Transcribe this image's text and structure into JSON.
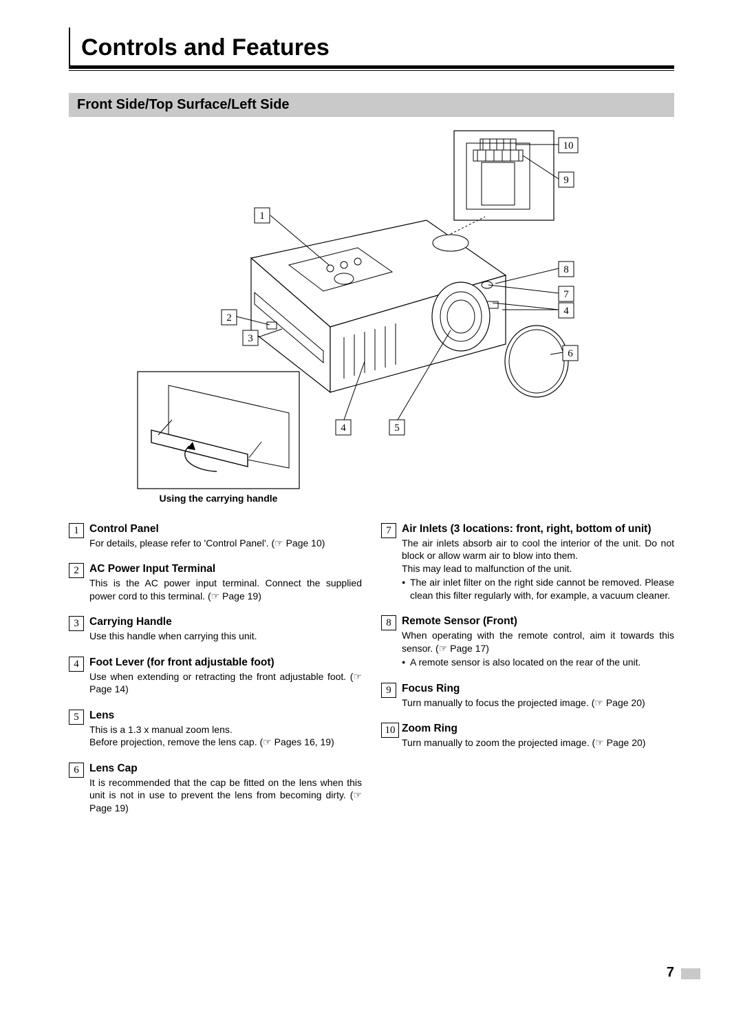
{
  "title": "Controls and Features",
  "section": "Front Side/Top Surface/Left Side",
  "handle_caption": "Using the carrying handle",
  "page_number": "7",
  "ref_glyph": "☞",
  "callouts": {
    "c1": "1",
    "c2": "2",
    "c3": "3",
    "c4": "4",
    "c5": "5",
    "c6": "6",
    "c7": "7",
    "c8": "8",
    "c9": "9",
    "c10": "10"
  },
  "left_items": [
    {
      "num": "1",
      "title": "Control Panel",
      "body": "For details, please refer to 'Control Panel'. (☞ Page 10)"
    },
    {
      "num": "2",
      "title": "AC Power Input Terminal",
      "body": "This is the AC power input terminal. Connect the supplied power cord to this terminal. (☞ Page 19)"
    },
    {
      "num": "3",
      "title": "Carrying Handle",
      "body": "Use this handle when carrying this unit."
    },
    {
      "num": "4",
      "title": "Foot Lever (for front adjustable foot)",
      "body": "Use when extending or retracting the front adjustable foot. (☞ Page 14)"
    },
    {
      "num": "5",
      "title": "Lens",
      "body": "This is a 1.3 x manual zoom lens.\nBefore projection, remove the lens cap. (☞ Pages 16, 19)"
    },
    {
      "num": "6",
      "title": "Lens Cap",
      "body": "It is recommended that the cap be fitted on the lens when this unit is not in use to prevent the lens from becoming dirty. (☞ Page 19)"
    }
  ],
  "right_items": [
    {
      "num": "7",
      "title": "Air Inlets (3 locations: front, right, bottom of unit)",
      "body": "The air inlets absorb air to cool the interior of the unit. Do not block or allow warm air to blow into them.\nThis may lead to malfunction of the unit.",
      "bullet": "The air inlet filter on the right side cannot be removed. Please clean this filter regularly with, for example, a vacuum cleaner."
    },
    {
      "num": "8",
      "title": "Remote Sensor (Front)",
      "body": "When operating with the remote control, aim it towards this sensor. (☞ Page 17)",
      "bullet": "A remote sensor is also located on the rear of the unit."
    },
    {
      "num": "9",
      "title": "Focus Ring",
      "body": "Turn manually to focus the projected image. (☞ Page 20)"
    },
    {
      "num": "10",
      "title": "Zoom Ring",
      "body": "Turn manually to zoom the projected image. (☞ Page 20)"
    }
  ],
  "diagram": {
    "stroke": "#000000",
    "stroke_width": 1.2,
    "bg": "#ffffff"
  }
}
